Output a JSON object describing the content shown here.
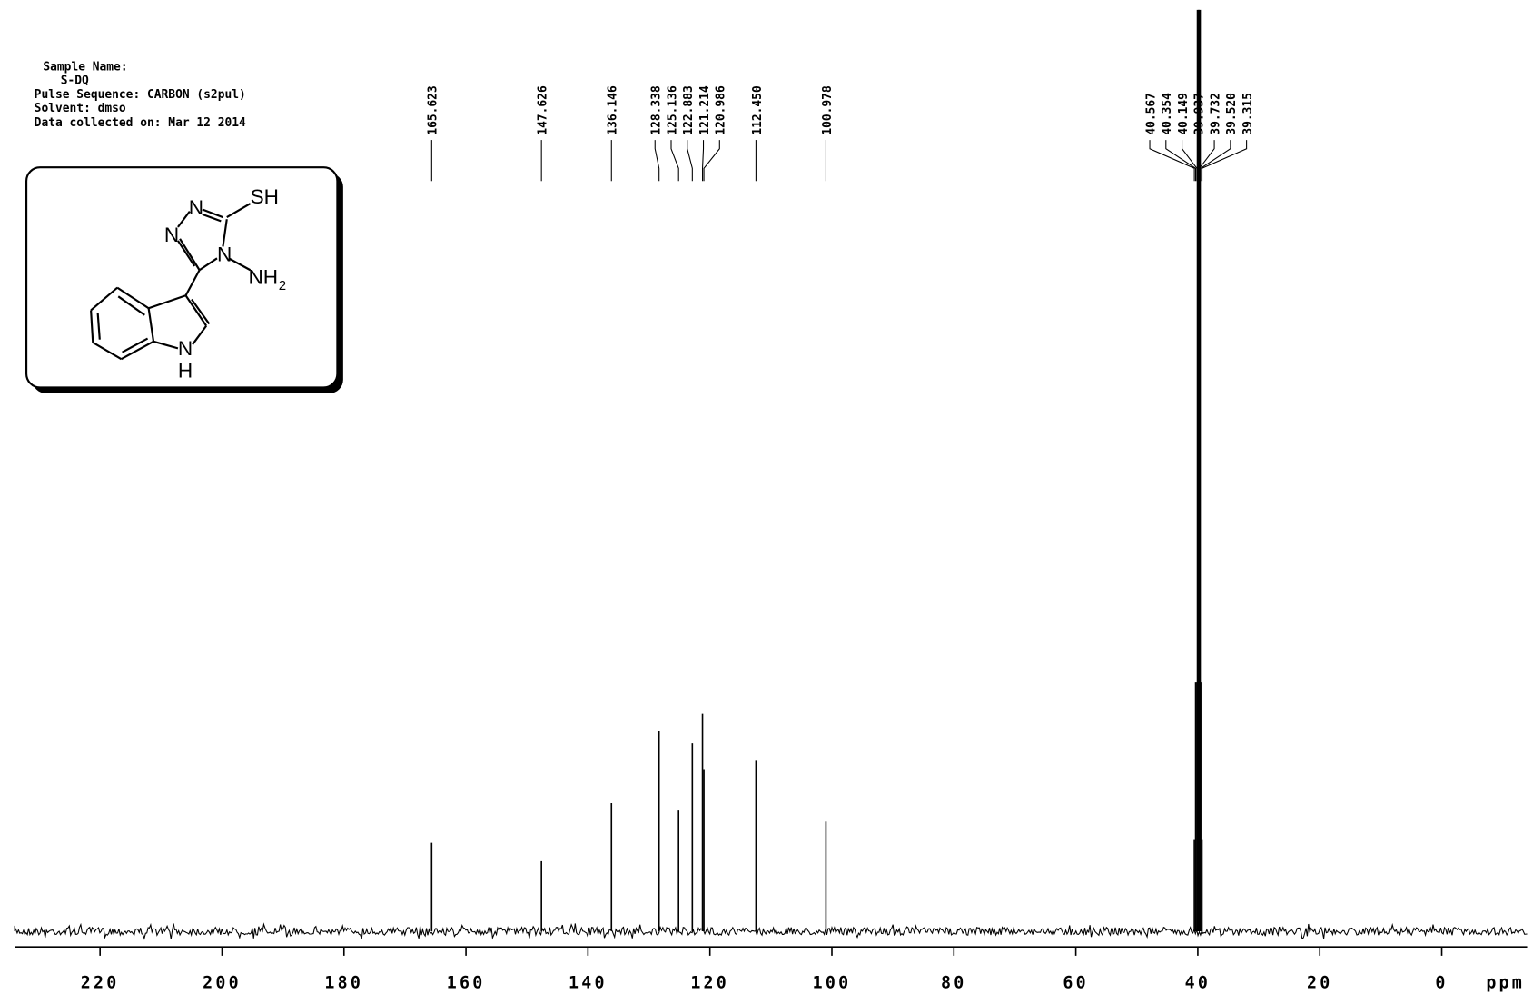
{
  "chart_data": {
    "type": "nmr",
    "annotations": [
      "Sample Name:",
      "S-DQ",
      "Pulse Sequence: CARBON (s2pul)",
      "Solvent: dmso",
      "Data collected on: Mar 12 2014"
    ],
    "structure": {
      "labels": [
        "N",
        "N",
        "SH",
        "N",
        "NH",
        "2",
        "N",
        "H"
      ]
    },
    "x_label": "ppm",
    "xlim": [
      234,
      -14
    ],
    "xticks": [
      220,
      200,
      180,
      160,
      140,
      120,
      100,
      80,
      60,
      40,
      20,
      0
    ],
    "ylim": [
      0,
      100
    ],
    "series": [
      {
        "color": "#000000",
        "x": [
          165.623,
          147.626,
          136.146,
          128.338,
          125.136,
          122.883,
          121.214,
          120.986,
          112.45,
          100.978,
          40.567,
          40.354,
          40.149,
          39.937,
          39.732,
          39.52,
          39.315
        ],
        "value_labels": [
          "165.623",
          "147.626",
          "136.146",
          "128.338",
          "125.136",
          "122.883",
          "121.214",
          "120.986",
          "112.450",
          "100.978",
          "40.567",
          "40.354",
          "40.149",
          "39.937",
          "39.732",
          "39.520",
          "39.315"
        ],
        "values": [
          9.6,
          7.6,
          13.9,
          21.7,
          13.1,
          20.4,
          23.6,
          17.6,
          18.5,
          11.9,
          10,
          27,
          27,
          100,
          100,
          27,
          10
        ]
      }
    ]
  }
}
